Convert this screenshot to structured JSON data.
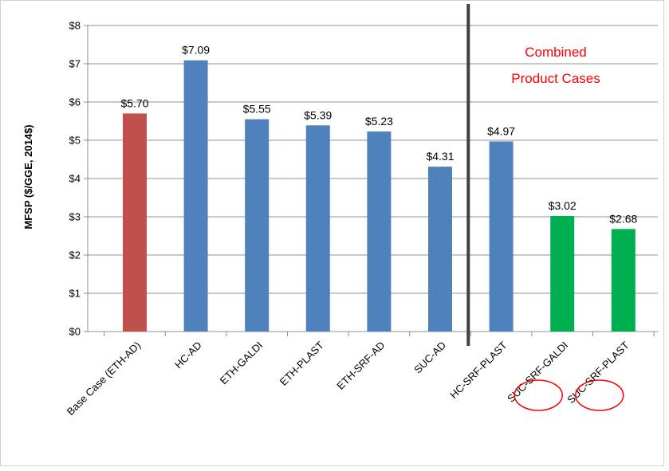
{
  "chart_data": {
    "type": "bar",
    "ylabel": "MFSP ($/GGE, 2014$)",
    "xlabel": "",
    "ylim": [
      0,
      8
    ],
    "ytick_labels": [
      "$0",
      "$1",
      "$2",
      "$3",
      "$4",
      "$5",
      "$6",
      "$7",
      "$8"
    ],
    "grid": true,
    "categories": [
      "Base Case (ETH-AD)",
      "HC-AD",
      "ETH-GALDI",
      "ETH-PLAST",
      "ETH-SRF-AD",
      "SUC-AD",
      "HC-SRF-PLAST",
      "SUC-SRF-GALDI",
      "SUC-SRF-PLAST"
    ],
    "values": [
      5.7,
      7.09,
      5.55,
      5.39,
      5.23,
      4.31,
      4.97,
      3.02,
      2.68
    ],
    "data_labels": [
      "$5.70",
      "$7.09",
      "$5.55",
      "$5.39",
      "$5.23",
      "$4.31",
      "$4.97",
      "$3.02",
      "$2.68"
    ],
    "bar_colors": [
      "#c0504d",
      "#4f81bd",
      "#4f81bd",
      "#4f81bd",
      "#4f81bd",
      "#4f81bd",
      "#4f81bd",
      "#00b050",
      "#00b050"
    ],
    "divider_after_category": "SUC-AD",
    "annotation": {
      "lines": [
        "Combined",
        "Product Cases"
      ],
      "color": "#ff0000"
    },
    "circled_categories": [
      "SUC-SRF-GALDI",
      "SUC-SRF-PLAST"
    ],
    "circle_color": "#ff0000"
  }
}
